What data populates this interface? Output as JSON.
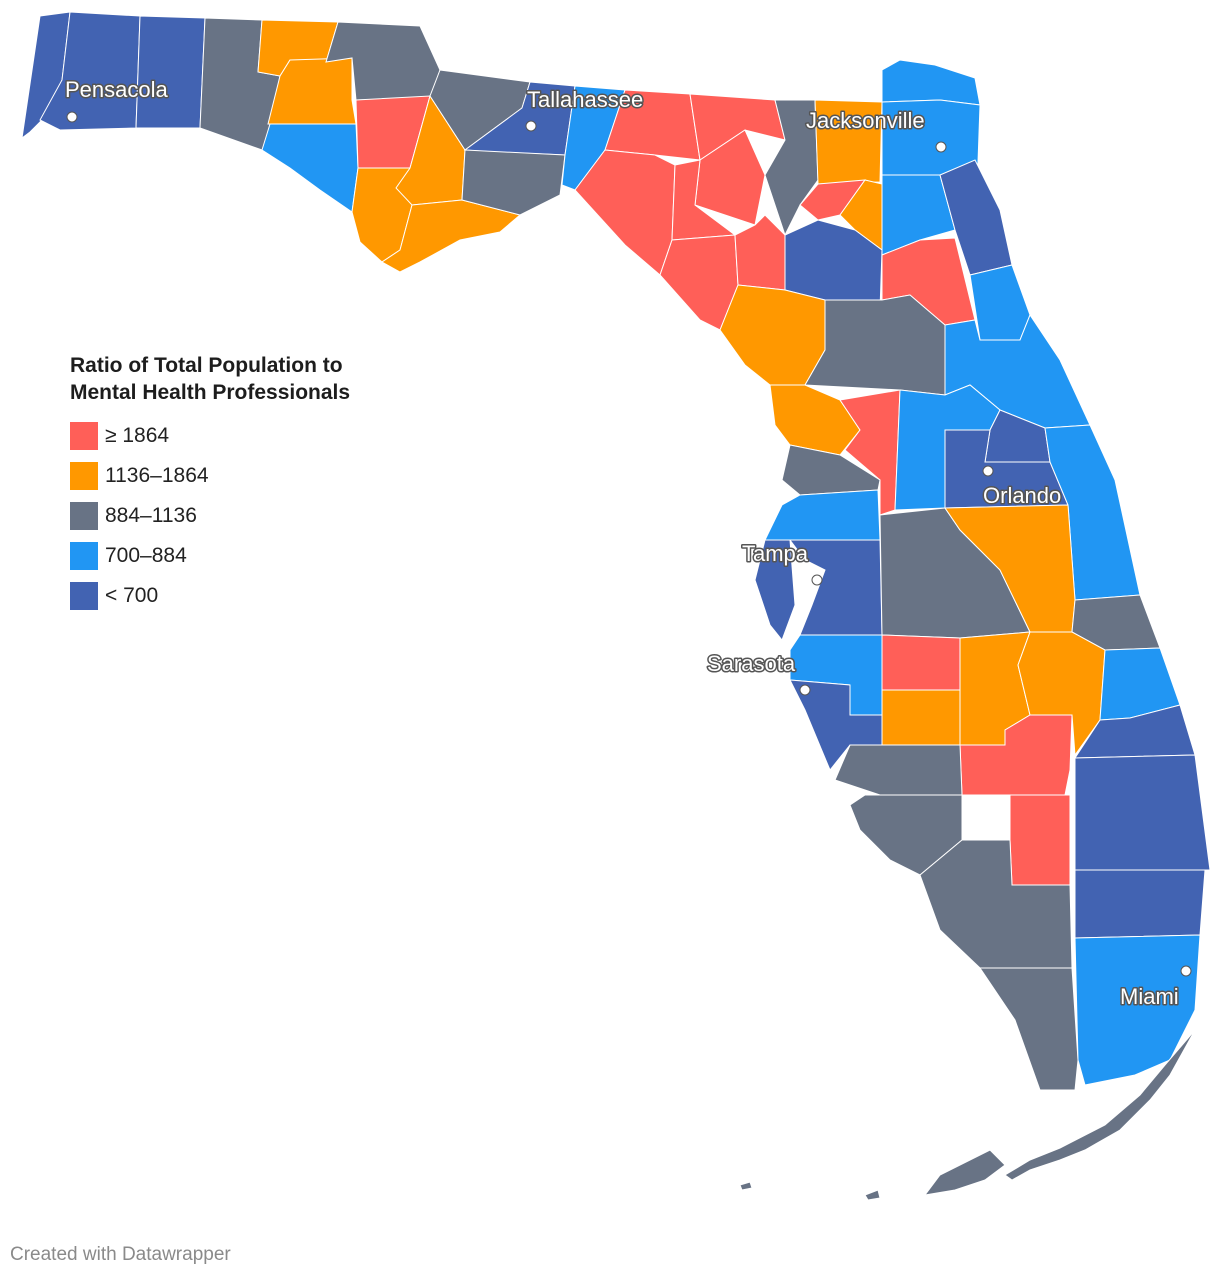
{
  "legend": {
    "title_line1": "Ratio of Total Population to",
    "title_line2": "Mental Health Professionals",
    "items": [
      {
        "label": "≥ 1864",
        "color": "#ff5f58"
      },
      {
        "label": "1136–1864",
        "color": "#ff9800"
      },
      {
        "label": "884–1136",
        "color": "#687385"
      },
      {
        "label": "700–884",
        "color": "#2196f3"
      },
      {
        "label": "< 700",
        "color": "#4263b2"
      }
    ]
  },
  "cities": [
    {
      "name": "Pensacola"
    },
    {
      "name": "Tallahassee"
    },
    {
      "name": "Jacksonville"
    },
    {
      "name": "Orlando"
    },
    {
      "name": "Tampa"
    },
    {
      "name": "Sarasota"
    },
    {
      "name": "Miami"
    }
  ],
  "credit": "Created with Datawrapper"
}
